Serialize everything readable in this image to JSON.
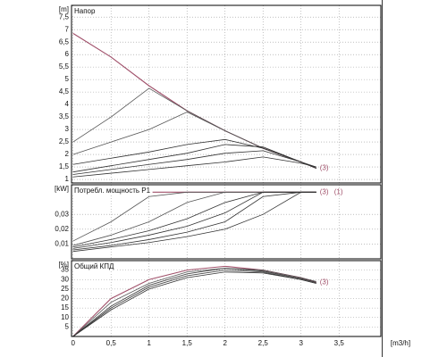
{
  "chart_data": [
    {
      "type": "line",
      "title": "Напор",
      "y_label": "[m]",
      "x": [
        0,
        0.5,
        1,
        1.5,
        2,
        2.5,
        3,
        3.2
      ],
      "xlim": [
        -0.02,
        4.05
      ],
      "xticks": [
        0,
        0.5,
        1,
        1.5,
        2,
        2.5,
        3,
        3.5
      ],
      "ylim": [
        0.86,
        7.97
      ],
      "yticks": [
        1,
        {
          "value": 1.5,
          "label": "1,5"
        },
        2,
        {
          "value": 2.5,
          "label": "2,5"
        },
        3,
        {
          "value": 3.5,
          "label": "3,5"
        },
        4,
        {
          "value": 4.5,
          "label": "4,5"
        },
        5,
        {
          "value": 5.5,
          "label": "5,5"
        },
        6,
        {
          "value": 6.5,
          "label": "6,5"
        },
        7,
        {
          "value": 7.5,
          "label": "7,5"
        }
      ],
      "grid": true,
      "series": [
        {
          "color": "#a0506a",
          "values": [
            6.85,
            5.9,
            4.75,
            3.75,
            2.95,
            2.25,
            1.7,
            1.45
          ]
        },
        {
          "color": "#555555",
          "values": [
            2.5,
            3.5,
            4.65,
            3.75,
            2.95,
            2.25,
            1.7,
            1.45
          ]
        },
        {
          "color": "#555555",
          "values": [
            2.0,
            2.5,
            3.0,
            3.7,
            2.95,
            2.25,
            1.7,
            1.45
          ]
        },
        {
          "color": "#333333",
          "values": [
            1.6,
            1.85,
            2.1,
            2.4,
            2.6,
            2.25,
            1.7,
            1.45
          ]
        },
        {
          "color": "#333333",
          "values": [
            1.3,
            1.55,
            1.8,
            2.05,
            2.4,
            2.3,
            1.7,
            1.45
          ]
        },
        {
          "color": "#333333",
          "values": [
            1.2,
            1.4,
            1.6,
            1.8,
            2.05,
            2.15,
            1.7,
            1.5
          ]
        },
        {
          "color": "#333333",
          "values": [
            1.1,
            1.25,
            1.4,
            1.55,
            1.7,
            1.9,
            1.65,
            1.5
          ]
        }
      ],
      "annotations": [
        "(3)"
      ]
    },
    {
      "type": "line",
      "title": "Потребл. мощность P1",
      "y_label": "[kW]",
      "x": [
        0,
        0.5,
        1,
        1.5,
        2,
        2.5,
        3,
        3.2
      ],
      "xlim": [
        -0.02,
        4.05
      ],
      "xticks": [
        0,
        0.5,
        1,
        1.5,
        2,
        2.5,
        3,
        3.5
      ],
      "ylim": [
        0,
        0.05
      ],
      "yticks": [
        {
          "value": 0.01,
          "label": "0,01"
        },
        {
          "value": 0.02,
          "label": "0,02"
        },
        {
          "value": 0.03,
          "label": "0,03"
        }
      ],
      "grid": true,
      "series": [
        {
          "color": "#a0506a",
          "values": [
            null,
            null,
            0.045,
            0.045,
            0.045,
            0.045,
            0.045,
            0.045
          ]
        },
        {
          "color": "#555555",
          "values": [
            0.012,
            0.025,
            0.042,
            0.045,
            0.045,
            0.045,
            0.045,
            0.045
          ]
        },
        {
          "color": "#555555",
          "values": [
            0.009,
            0.016,
            0.025,
            0.038,
            0.045,
            0.045,
            0.045,
            0.045
          ]
        },
        {
          "color": "#333333",
          "values": [
            0.008,
            0.013,
            0.019,
            0.027,
            0.038,
            0.045,
            0.045,
            0.045
          ]
        },
        {
          "color": "#333333",
          "values": [
            0.007,
            0.011,
            0.016,
            0.022,
            0.031,
            0.045,
            0.045,
            0.045
          ]
        },
        {
          "color": "#333333",
          "values": [
            0.006,
            0.009,
            0.013,
            0.018,
            0.025,
            0.042,
            0.045,
            0.045
          ]
        },
        {
          "color": "#333333",
          "values": [
            0.005,
            0.008,
            0.011,
            0.015,
            0.02,
            0.03,
            0.045,
            0.045
          ]
        }
      ],
      "annotations": [
        "(3)",
        "(1)"
      ]
    },
    {
      "type": "line",
      "title": "Общий КПД",
      "y_label": "[%]",
      "x_label": "[m3/h]",
      "x": [
        0,
        0.5,
        1,
        1.5,
        2,
        2.5,
        3,
        3.2
      ],
      "xlim": [
        -0.02,
        4.05
      ],
      "xticks": [
        0,
        {
          "value": 0.5,
          "label": "0,5"
        },
        1,
        {
          "value": 1.5,
          "label": "1,5"
        },
        2,
        {
          "value": 2.5,
          "label": "2,5"
        },
        3,
        {
          "value": 3.5,
          "label": "3,5"
        }
      ],
      "ylim": [
        0,
        40
      ],
      "yticks": [
        5,
        10,
        15,
        20,
        25,
        30,
        35
      ],
      "grid": true,
      "series": [
        {
          "color": "#a0506a",
          "values": [
            0,
            20,
            30,
            35,
            37,
            35,
            31,
            28.5
          ]
        },
        {
          "color": "#555555",
          "values": [
            0,
            18,
            28,
            34,
            36,
            35,
            31,
            29
          ]
        },
        {
          "color": "#333333",
          "values": [
            0,
            16,
            27,
            33,
            36,
            34.5,
            30.5,
            28.5
          ]
        },
        {
          "color": "#333333",
          "values": [
            0,
            15,
            26,
            32,
            35,
            34,
            30,
            28
          ]
        },
        {
          "color": "#333333",
          "values": [
            0,
            14,
            25,
            31,
            34,
            33.5,
            30,
            28
          ]
        }
      ],
      "annotations": [
        "(3)"
      ]
    }
  ]
}
